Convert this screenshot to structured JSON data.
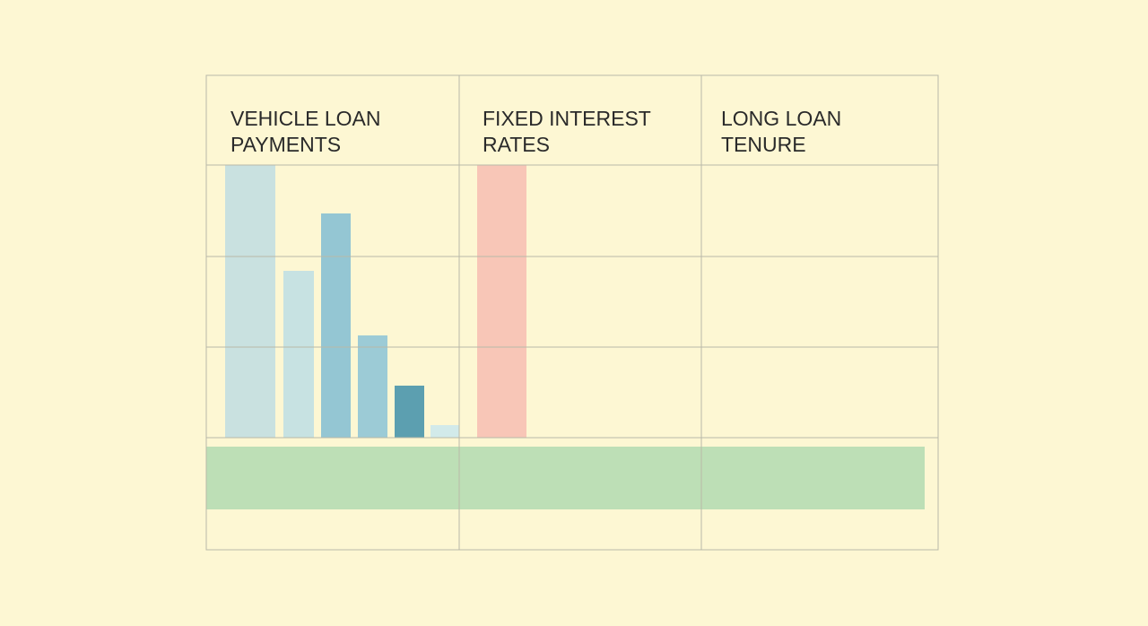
{
  "headers": [
    {
      "lines": [
        "VEHICLE LOAN",
        "PAYMENTS"
      ]
    },
    {
      "lines": [
        "FIXED INTEREST",
        "RATES"
      ]
    },
    {
      "lines": [
        "LONG LOAN",
        "TENURE"
      ]
    }
  ]
}
